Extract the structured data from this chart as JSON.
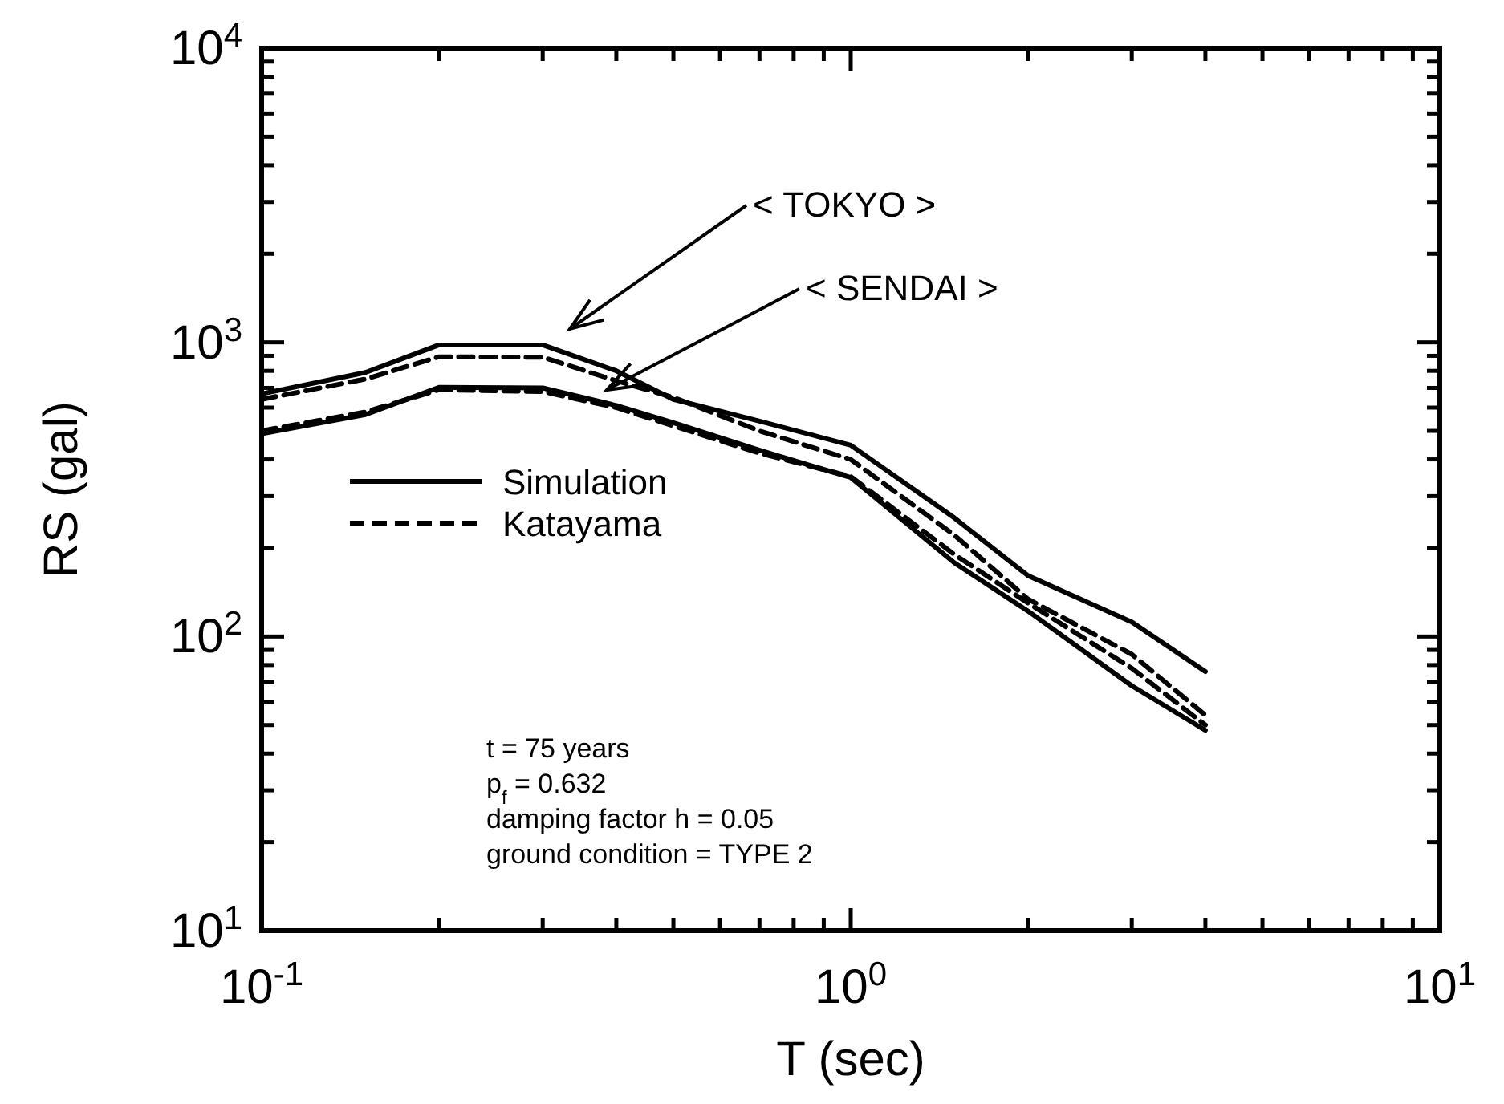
{
  "chart_data": {
    "type": "line",
    "xlabel": "T (sec)",
    "ylabel": "RS (gal)",
    "log": "xy",
    "grid": false,
    "legend": "left",
    "xlim": [
      0.1,
      10
    ],
    "ylim": [
      10,
      10000
    ],
    "xticks": [
      {
        "value": 0.1,
        "label": "10$^{-1}$"
      },
      {
        "value": 0.2,
        "label": null
      },
      {
        "value": 0.3,
        "label": null
      },
      {
        "value": 0.4,
        "label": null
      },
      {
        "value": 0.5,
        "label": null
      },
      {
        "value": 0.6,
        "label": null
      },
      {
        "value": 0.7,
        "label": null
      },
      {
        "value": 0.8,
        "label": null
      },
      {
        "value": 0.9,
        "label": null
      },
      {
        "value": 1,
        "label": "10$^{0}$"
      },
      {
        "value": 2,
        "label": null
      },
      {
        "value": 3,
        "label": null
      },
      {
        "value": 4,
        "label": null
      },
      {
        "value": 5,
        "label": null
      },
      {
        "value": 6,
        "label": null
      },
      {
        "value": 7,
        "label": null
      },
      {
        "value": 8,
        "label": null
      },
      {
        "value": 9,
        "label": null
      },
      {
        "value": 10,
        "label": "10$^{1}$"
      }
    ],
    "yticks": [
      {
        "value": 10,
        "label": "10$^{1}$"
      },
      {
        "value": 20,
        "label": null
      },
      {
        "value": 30,
        "label": null
      },
      {
        "value": 40,
        "label": null
      },
      {
        "value": 50,
        "label": null
      },
      {
        "value": 60,
        "label": null
      },
      {
        "value": 70,
        "label": null
      },
      {
        "value": 80,
        "label": null
      },
      {
        "value": 90,
        "label": null
      },
      {
        "value": 100,
        "label": "10$^{2}$"
      },
      {
        "value": 200,
        "label": null
      },
      {
        "value": 300,
        "label": null
      },
      {
        "value": 400,
        "label": null
      },
      {
        "value": 500,
        "label": null
      },
      {
        "value": 600,
        "label": null
      },
      {
        "value": 700,
        "label": null
      },
      {
        "value": 800,
        "label": null
      },
      {
        "value": 900,
        "label": null
      },
      {
        "value": 1000,
        "label": "10$^{3}$"
      },
      {
        "value": 2000,
        "label": null
      },
      {
        "value": 3000,
        "label": null
      },
      {
        "value": 4000,
        "label": null
      },
      {
        "value": 5000,
        "label": null
      },
      {
        "value": 6000,
        "label": null
      },
      {
        "value": 7000,
        "label": null
      },
      {
        "value": 8000,
        "label": null
      },
      {
        "value": 9000,
        "label": null
      },
      {
        "value": 10000,
        "label": "10$^{4}$"
      }
    ],
    "x": [
      0.1,
      0.15,
      0.2,
      0.3,
      0.4,
      0.5,
      0.7,
      1,
      1.5,
      2,
      3,
      4
    ],
    "series": [
      {
        "name": "Simulation",
        "color": "#000000",
        "line_style": "solid",
        "values": [
          668,
          790,
          980,
          980,
          800,
          640,
          540,
          447,
          253,
          161,
          112,
          76
        ]
      },
      {
        "name": "Katayama",
        "color": "#000000",
        "line_style": "dashed",
        "values": [
          640,
          750,
          893,
          890,
          740,
          650,
          500,
          400,
          221,
          134,
          87,
          54
        ]
      },
      {
        "color": "#000000",
        "line_style": "solid",
        "values": [
          489,
          568,
          703,
          700,
          610,
          533,
          430,
          347,
          178,
          122,
          68,
          48
        ]
      },
      {
        "color": "#000000",
        "line_style": "dashed",
        "values": [
          500,
          580,
          690,
          680,
          600,
          520,
          420,
          350,
          190,
          130,
          78,
          50
        ]
      }
    ],
    "annotations": [
      "< TOKYO >",
      "< SENDAI >",
      "t = 75 years",
      "p$_{f}$ = 0.632",
      "damping factor h = 0.05",
      "ground condition = TYPE 2"
    ]
  }
}
